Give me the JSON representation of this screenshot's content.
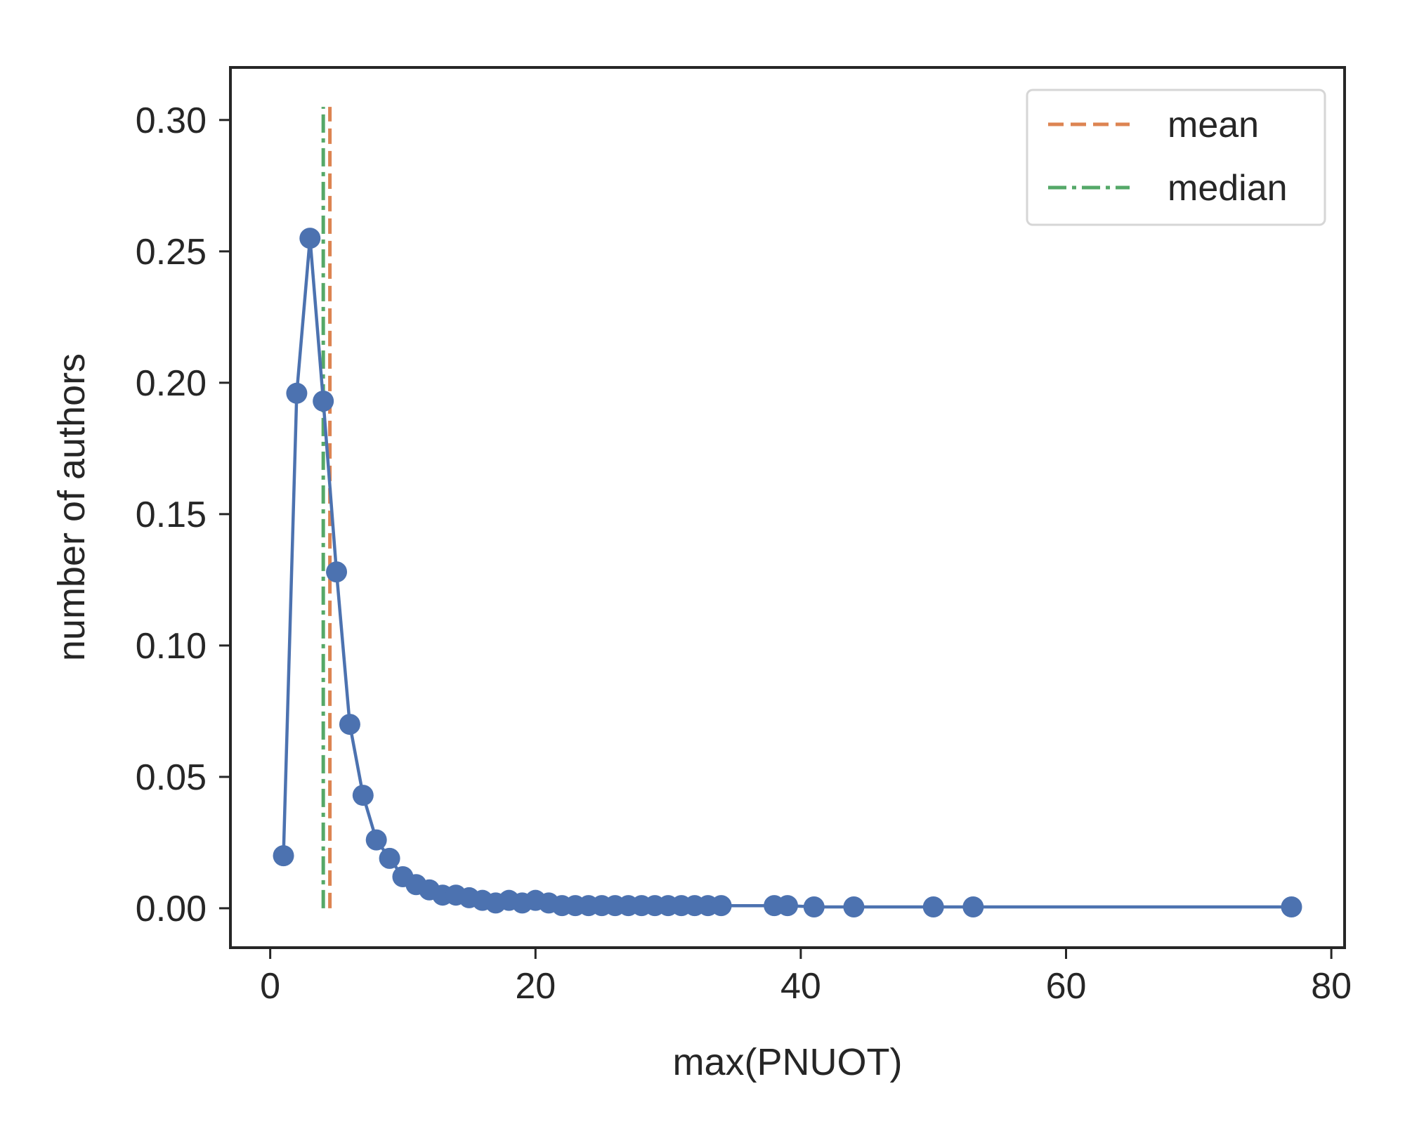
{
  "chart_data": {
    "type": "line",
    "xlabel": "max(PNUOT)",
    "ylabel": "number of authors",
    "xlim": [
      -3,
      81
    ],
    "ylim": [
      -0.015,
      0.32
    ],
    "xticks": [
      0,
      20,
      40,
      60,
      80
    ],
    "xtick_labels": [
      "0",
      "20",
      "40",
      "60",
      "80"
    ],
    "yticks": [
      0.0,
      0.05,
      0.1,
      0.15,
      0.2,
      0.25,
      0.3
    ],
    "ytick_labels": [
      "0.00",
      "0.05",
      "0.10",
      "0.15",
      "0.20",
      "0.25",
      "0.30"
    ],
    "grid": false,
    "legend_position": "top-right",
    "series": [
      {
        "color": "#4c72b0",
        "marker": "circle",
        "x": [
          1,
          2,
          3,
          4,
          5,
          6,
          7,
          8,
          9,
          10,
          11,
          12,
          13,
          14,
          15,
          16,
          17,
          18,
          19,
          20,
          21,
          22,
          23,
          24,
          25,
          26,
          27,
          28,
          29,
          30,
          31,
          32,
          33,
          34,
          38,
          39,
          41,
          44,
          50,
          53,
          77
        ],
        "y": [
          0.02,
          0.196,
          0.255,
          0.193,
          0.128,
          0.07,
          0.043,
          0.026,
          0.019,
          0.012,
          0.009,
          0.007,
          0.005,
          0.005,
          0.004,
          0.003,
          0.002,
          0.003,
          0.002,
          0.003,
          0.002,
          0.001,
          0.001,
          0.001,
          0.001,
          0.001,
          0.001,
          0.001,
          0.001,
          0.001,
          0.001,
          0.001,
          0.001,
          0.001,
          0.001,
          0.001,
          0.0005,
          0.0005,
          0.0005,
          0.0005,
          0.0005
        ]
      }
    ],
    "vlines": [
      {
        "name": "mean",
        "x": 4.5,
        "y_range": [
          0.0,
          0.305
        ],
        "color": "#dd8452",
        "style": "dashed"
      },
      {
        "name": "median",
        "x": 4.0,
        "y_range": [
          0.0,
          0.305
        ],
        "color": "#55a868",
        "style": "dashdot"
      }
    ]
  }
}
